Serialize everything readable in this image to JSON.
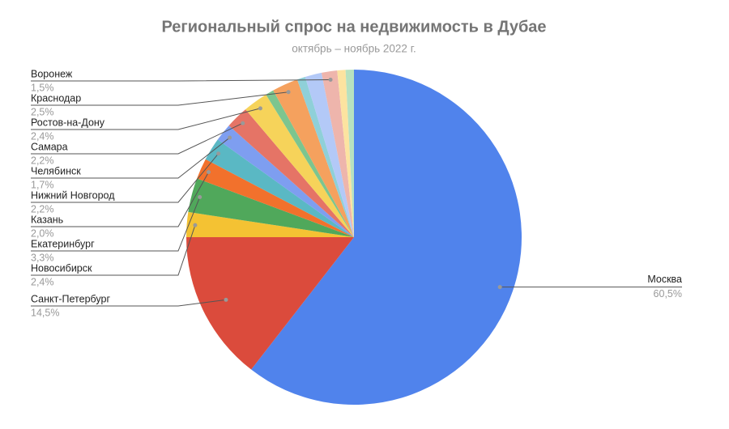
{
  "chart_data": {
    "type": "pie",
    "title": "Региональный спрос на недвижимость в Дубае",
    "subtitle": "октябрь – ноябрь 2022 г.",
    "categories": [
      "Москва",
      "Санкт-Петербург",
      "Новосибирск",
      "Екатеринбург",
      "Казань",
      "Нижний Новгород",
      "Челябинск",
      "Самара",
      "Ростов-на-Дону",
      null,
      "Краснодар",
      null,
      null,
      "Воронеж",
      null,
      null
    ],
    "values": [
      60.5,
      14.5,
      2.4,
      3.3,
      2.0,
      2.2,
      1.7,
      2.2,
      2.4,
      0.8,
      2.5,
      0.8,
      1.6,
      1.5,
      0.8,
      0.8
    ],
    "value_labels": [
      "60,5%",
      "14,5%",
      "2,4%",
      "3,3%",
      "2,0%",
      "2,2%",
      "1,7%",
      "2,2%",
      "2,4%",
      null,
      "2,5%",
      null,
      null,
      "1,5%",
      null,
      null
    ],
    "colors": [
      "#5083ec",
      "#db4b3c",
      "#f4c233",
      "#50a85b",
      "#f2712c",
      "#5ab8c4",
      "#7e9ef0",
      "#e57466",
      "#f6d35a",
      "#7cc58f",
      "#f5a15e",
      "#8fd0d8",
      "#b3c9f7",
      "#eeb5ac",
      "#fce3a0",
      "#b7e1c0"
    ]
  }
}
